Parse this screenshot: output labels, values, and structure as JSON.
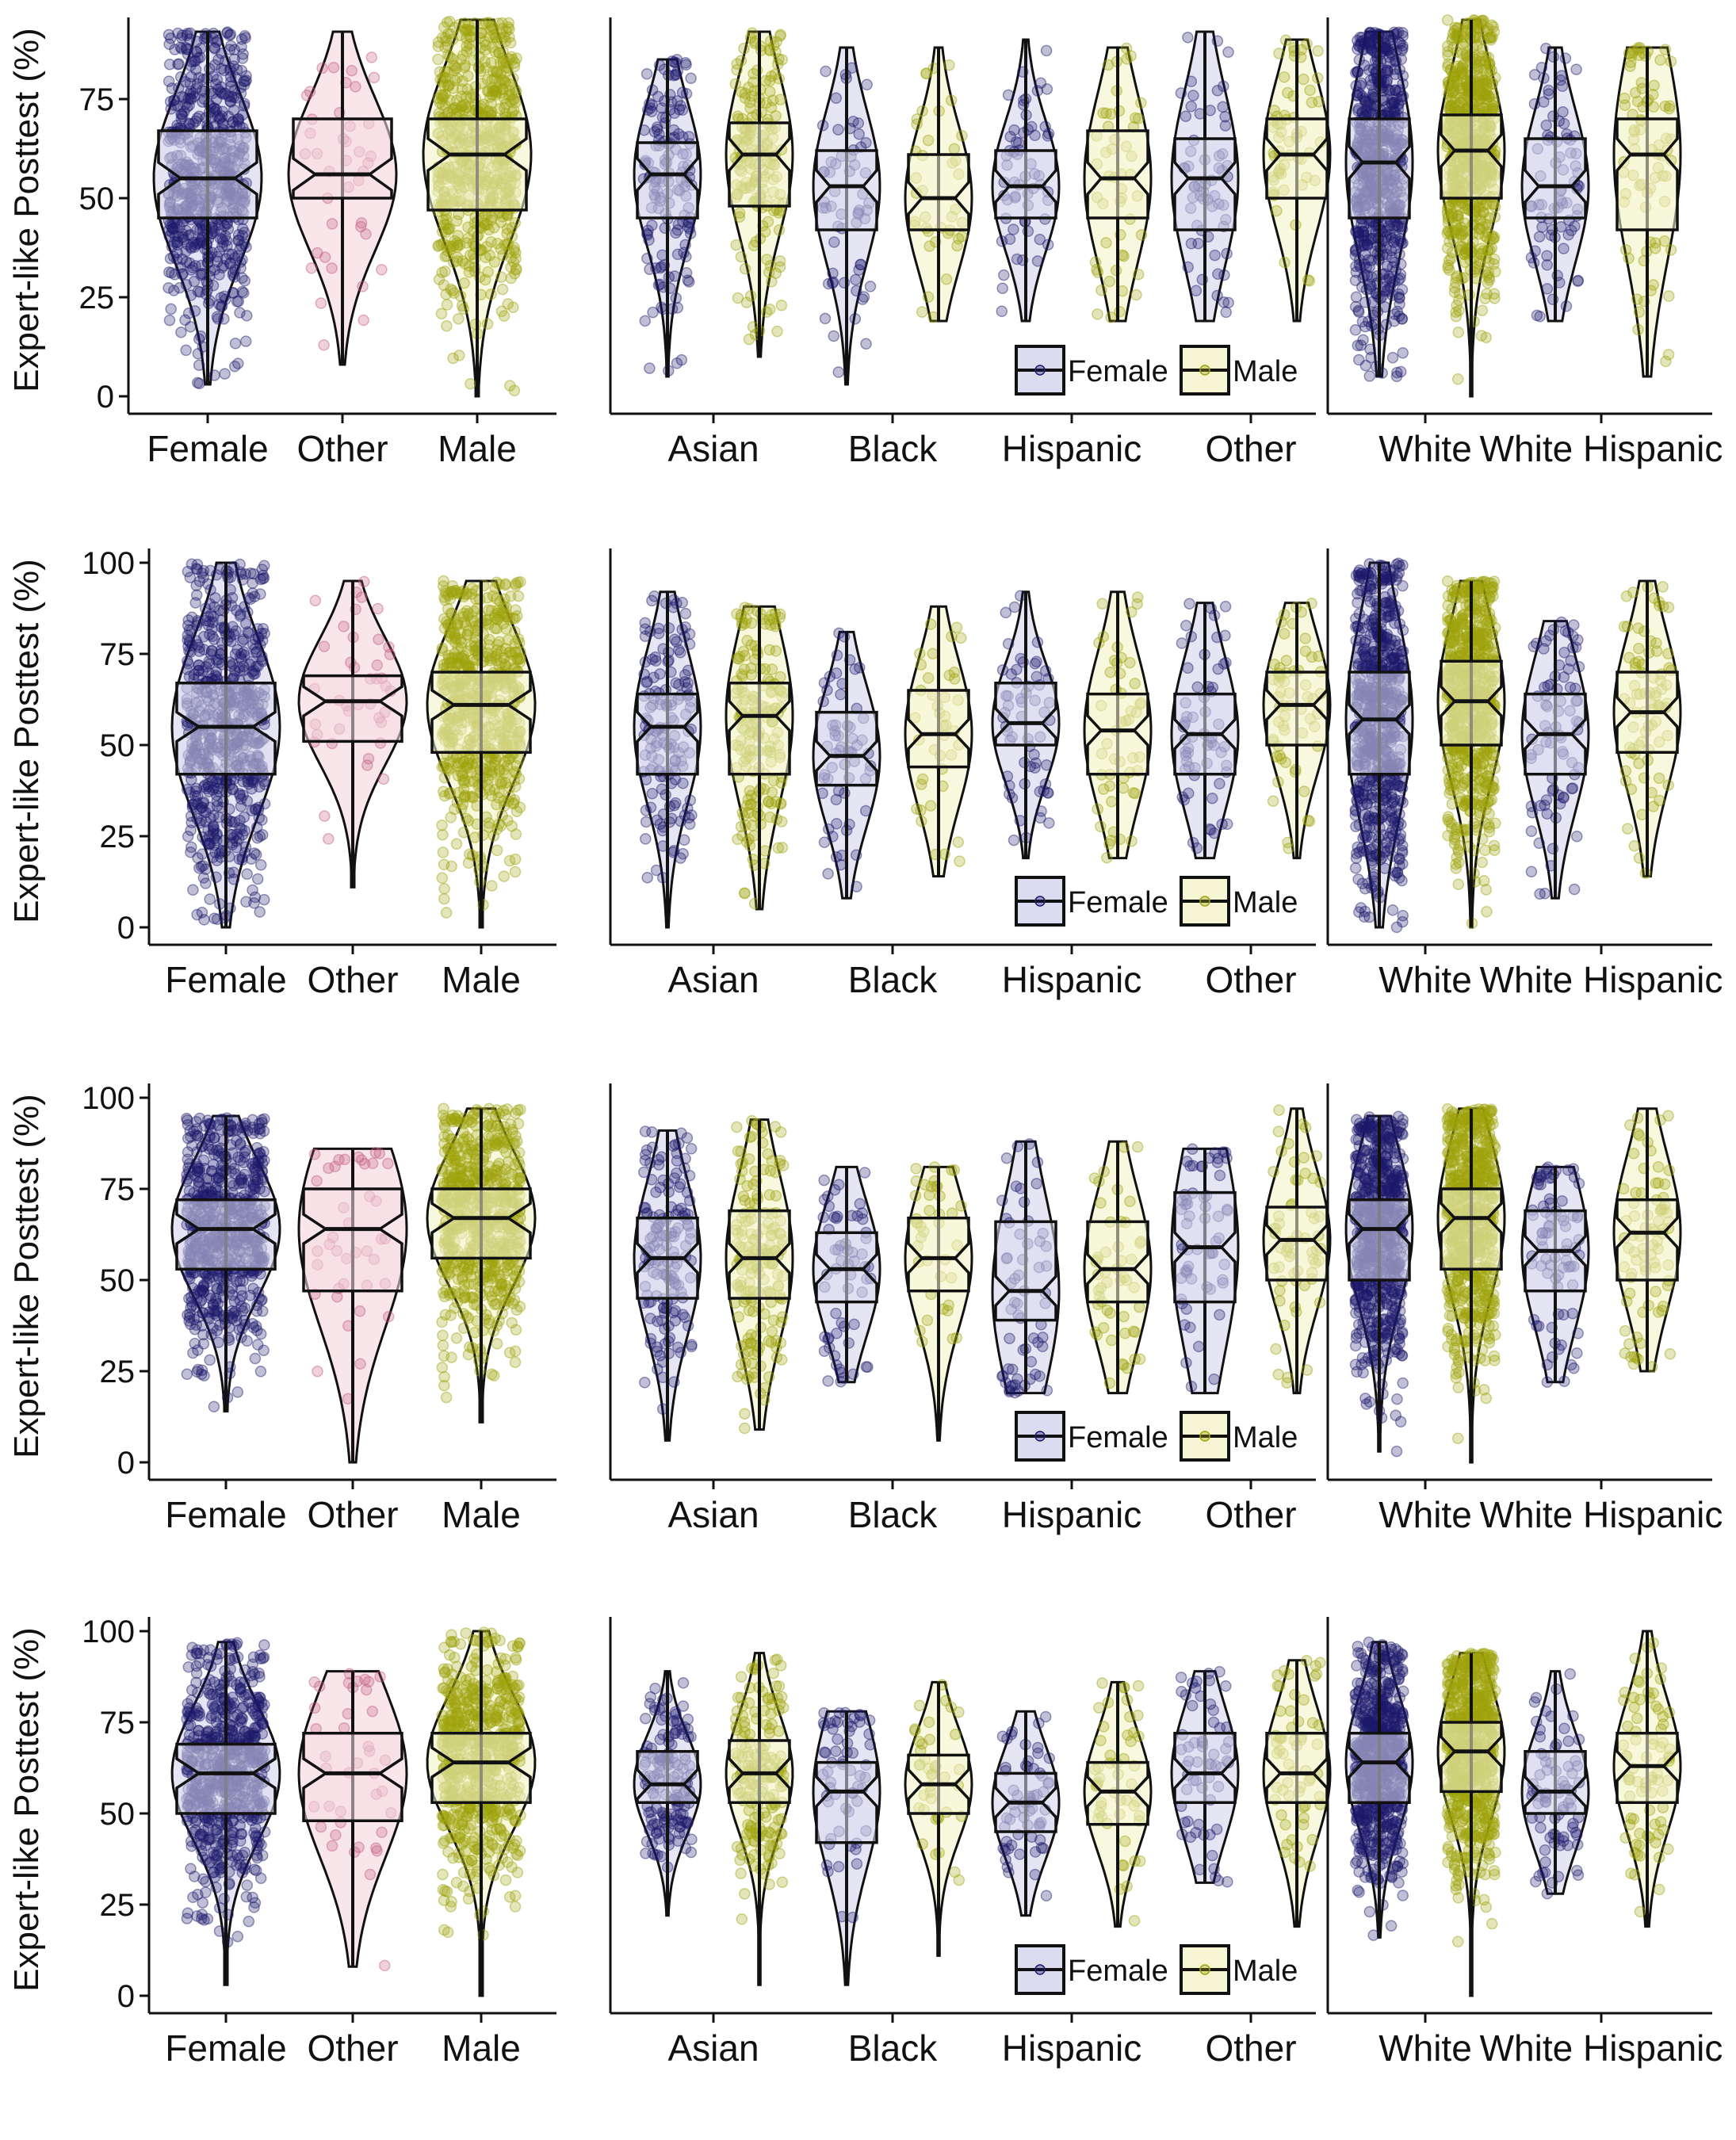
{
  "chart_data": {
    "type": "violin-box",
    "colors": {
      "Female": "#1c1a6b",
      "Other": "#c35a7e",
      "Male": "#9ea30c"
    },
    "fills": {
      "Female": "#dcdcf0",
      "Other": "#f6dde4",
      "Male": "#f6f6d4"
    },
    "legend": {
      "entries": [
        "Female",
        "Male"
      ],
      "placement": "bottom-right of race panel"
    },
    "rows": [
      {
        "ylabel": "Expert-like Posttest (%)",
        "yticks": [
          0,
          25,
          50,
          75
        ],
        "ylim": [
          0,
          92
        ],
        "gender": {
          "categories": [
            "Female",
            "Other",
            "Male"
          ],
          "groups": [
            {
              "cat": "Female",
              "g": "Female",
              "lo": 3,
              "hi": 92,
              "q1": 45,
              "med": 55,
              "q3": 67,
              "n": 1400
            },
            {
              "cat": "Other",
              "g": "Other",
              "lo": 8,
              "hi": 92,
              "q1": 50,
              "med": 56,
              "q3": 70,
              "n": 40
            },
            {
              "cat": "Male",
              "g": "Male",
              "lo": 0,
              "hi": 95,
              "q1": 47,
              "med": 61,
              "q3": 70,
              "n": 1400
            }
          ]
        },
        "race": {
          "categories": [
            "Asian",
            "Black",
            "Hispanic",
            "Other"
          ],
          "groups": [
            {
              "cat": "Asian",
              "g": "Female",
              "lo": 5,
              "hi": 85,
              "q1": 45,
              "med": 56,
              "q3": 64,
              "n": 150
            },
            {
              "cat": "Asian",
              "g": "Male",
              "lo": 10,
              "hi": 92,
              "q1": 48,
              "med": 61,
              "q3": 69,
              "n": 180
            },
            {
              "cat": "Black",
              "g": "Female",
              "lo": 3,
              "hi": 88,
              "q1": 42,
              "med": 53,
              "q3": 62,
              "n": 60
            },
            {
              "cat": "Black",
              "g": "Male",
              "lo": 19,
              "hi": 88,
              "q1": 42,
              "med": 50,
              "q3": 61,
              "n": 40
            },
            {
              "cat": "Hispanic",
              "g": "Female",
              "lo": 19,
              "hi": 90,
              "q1": 45,
              "med": 53,
              "q3": 62,
              "n": 60
            },
            {
              "cat": "Hispanic",
              "g": "Male",
              "lo": 19,
              "hi": 88,
              "q1": 45,
              "med": 55,
              "q3": 67,
              "n": 50
            },
            {
              "cat": "Other",
              "g": "Female",
              "lo": 19,
              "hi": 92,
              "q1": 42,
              "med": 55,
              "q3": 65,
              "n": 60
            },
            {
              "cat": "Other",
              "g": "Male",
              "lo": 19,
              "hi": 90,
              "q1": 50,
              "med": 61,
              "q3": 70,
              "n": 60
            }
          ]
        },
        "race2": {
          "categories": [
            "White",
            "White Hispanic"
          ],
          "groups": [
            {
              "cat": "White",
              "g": "Female",
              "lo": 5,
              "hi": 92,
              "q1": 45,
              "med": 59,
              "q3": 70,
              "n": 700
            },
            {
              "cat": "White",
              "g": "Male",
              "lo": 0,
              "hi": 95,
              "q1": 50,
              "med": 62,
              "q3": 71,
              "n": 700
            },
            {
              "cat": "White Hispanic",
              "g": "Female",
              "lo": 19,
              "hi": 88,
              "q1": 45,
              "med": 53,
              "q3": 65,
              "n": 80
            },
            {
              "cat": "White Hispanic",
              "g": "Male",
              "lo": 5,
              "hi": 88,
              "q1": 42,
              "med": 61,
              "q3": 70,
              "n": 80
            }
          ]
        }
      },
      {
        "ylabel": "Expert-like Posttest (%)",
        "yticks": [
          0,
          25,
          50,
          75,
          100
        ],
        "ylim": [
          0,
          100
        ],
        "gender": {
          "categories": [
            "Female",
            "Other",
            "Male"
          ],
          "groups": [
            {
              "cat": "Female",
              "g": "Female",
              "lo": 0,
              "hi": 100,
              "q1": 42,
              "med": 55,
              "q3": 67,
              "n": 1400
            },
            {
              "cat": "Other",
              "g": "Other",
              "lo": 11,
              "hi": 95,
              "q1": 51,
              "med": 62,
              "q3": 69,
              "n": 40
            },
            {
              "cat": "Male",
              "g": "Male",
              "lo": 0,
              "hi": 95,
              "q1": 48,
              "med": 61,
              "q3": 70,
              "n": 1400
            }
          ]
        },
        "race": {
          "categories": [
            "Asian",
            "Black",
            "Hispanic",
            "Other"
          ],
          "groups": [
            {
              "cat": "Asian",
              "g": "Female",
              "lo": 0,
              "hi": 92,
              "q1": 42,
              "med": 55,
              "q3": 64,
              "n": 150
            },
            {
              "cat": "Asian",
              "g": "Male",
              "lo": 5,
              "hi": 88,
              "q1": 42,
              "med": 58,
              "q3": 67,
              "n": 180
            },
            {
              "cat": "Black",
              "g": "Female",
              "lo": 8,
              "hi": 81,
              "q1": 39,
              "med": 47,
              "q3": 59,
              "n": 60
            },
            {
              "cat": "Black",
              "g": "Male",
              "lo": 14,
              "hi": 88,
              "q1": 44,
              "med": 53,
              "q3": 65,
              "n": 40
            },
            {
              "cat": "Hispanic",
              "g": "Female",
              "lo": 19,
              "hi": 92,
              "q1": 50,
              "med": 56,
              "q3": 67,
              "n": 60
            },
            {
              "cat": "Hispanic",
              "g": "Male",
              "lo": 19,
              "hi": 92,
              "q1": 42,
              "med": 54,
              "q3": 64,
              "n": 50
            },
            {
              "cat": "Other",
              "g": "Female",
              "lo": 19,
              "hi": 89,
              "q1": 42,
              "med": 53,
              "q3": 64,
              "n": 60
            },
            {
              "cat": "Other",
              "g": "Male",
              "lo": 19,
              "hi": 89,
              "q1": 50,
              "med": 61,
              "q3": 70,
              "n": 60
            }
          ]
        },
        "race2": {
          "categories": [
            "White",
            "White Hispanic"
          ],
          "groups": [
            {
              "cat": "White",
              "g": "Female",
              "lo": 0,
              "hi": 100,
              "q1": 42,
              "med": 57,
              "q3": 70,
              "n": 700
            },
            {
              "cat": "White",
              "g": "Male",
              "lo": 0,
              "hi": 95,
              "q1": 50,
              "med": 62,
              "q3": 73,
              "n": 700
            },
            {
              "cat": "White Hispanic",
              "g": "Female",
              "lo": 8,
              "hi": 84,
              "q1": 42,
              "med": 53,
              "q3": 64,
              "n": 80
            },
            {
              "cat": "White Hispanic",
              "g": "Male",
              "lo": 14,
              "hi": 95,
              "q1": 48,
              "med": 59,
              "q3": 70,
              "n": 80
            }
          ]
        }
      },
      {
        "ylabel": "Expert-like Posttest (%)",
        "yticks": [
          0,
          25,
          50,
          75,
          100
        ],
        "ylim": [
          0,
          100
        ],
        "gender": {
          "categories": [
            "Female",
            "Other",
            "Male"
          ],
          "groups": [
            {
              "cat": "Female",
              "g": "Female",
              "lo": 14,
              "hi": 95,
              "q1": 53,
              "med": 64,
              "q3": 72,
              "n": 1400
            },
            {
              "cat": "Other",
              "g": "Other",
              "lo": 0,
              "hi": 86,
              "q1": 47,
              "med": 64,
              "q3": 75,
              "n": 40
            },
            {
              "cat": "Male",
              "g": "Male",
              "lo": 11,
              "hi": 97,
              "q1": 56,
              "med": 67,
              "q3": 75,
              "n": 1400
            }
          ]
        },
        "race": {
          "categories": [
            "Asian",
            "Black",
            "Hispanic",
            "Other"
          ],
          "groups": [
            {
              "cat": "Asian",
              "g": "Female",
              "lo": 6,
              "hi": 91,
              "q1": 45,
              "med": 56,
              "q3": 67,
              "n": 150
            },
            {
              "cat": "Asian",
              "g": "Male",
              "lo": 9,
              "hi": 94,
              "q1": 45,
              "med": 56,
              "q3": 69,
              "n": 180
            },
            {
              "cat": "Black",
              "g": "Female",
              "lo": 22,
              "hi": 81,
              "q1": 44,
              "med": 53,
              "q3": 63,
              "n": 60
            },
            {
              "cat": "Black",
              "g": "Male",
              "lo": 6,
              "hi": 81,
              "q1": 47,
              "med": 56,
              "q3": 67,
              "n": 40
            },
            {
              "cat": "Hispanic",
              "g": "Female",
              "lo": 19,
              "hi": 88,
              "q1": 39,
              "med": 47,
              "q3": 66,
              "n": 60
            },
            {
              "cat": "Hispanic",
              "g": "Male",
              "lo": 19,
              "hi": 88,
              "q1": 44,
              "med": 53,
              "q3": 66,
              "n": 50
            },
            {
              "cat": "Other",
              "g": "Female",
              "lo": 19,
              "hi": 86,
              "q1": 44,
              "med": 59,
              "q3": 74,
              "n": 60
            },
            {
              "cat": "Other",
              "g": "Male",
              "lo": 19,
              "hi": 97,
              "q1": 50,
              "med": 61,
              "q3": 70,
              "n": 60
            }
          ]
        },
        "race2": {
          "categories": [
            "White",
            "White Hispanic"
          ],
          "groups": [
            {
              "cat": "White",
              "g": "Female",
              "lo": 3,
              "hi": 95,
              "q1": 50,
              "med": 64,
              "q3": 72,
              "n": 700
            },
            {
              "cat": "White",
              "g": "Male",
              "lo": 0,
              "hi": 97,
              "q1": 53,
              "med": 67,
              "q3": 75,
              "n": 700
            },
            {
              "cat": "White Hispanic",
              "g": "Female",
              "lo": 22,
              "hi": 81,
              "q1": 47,
              "med": 58,
              "q3": 69,
              "n": 80
            },
            {
              "cat": "White Hispanic",
              "g": "Male",
              "lo": 25,
              "hi": 97,
              "q1": 50,
              "med": 63,
              "q3": 72,
              "n": 80
            }
          ]
        }
      },
      {
        "ylabel": "Expert-like Posttest (%)",
        "yticks": [
          0,
          25,
          50,
          75,
          100
        ],
        "ylim": [
          0,
          100
        ],
        "gender": {
          "categories": [
            "Female",
            "Other",
            "Male"
          ],
          "groups": [
            {
              "cat": "Female",
              "g": "Female",
              "lo": 3,
              "hi": 97,
              "q1": 50,
              "med": 61,
              "q3": 69,
              "n": 1400
            },
            {
              "cat": "Other",
              "g": "Other",
              "lo": 8,
              "hi": 89,
              "q1": 48,
              "med": 61,
              "q3": 72,
              "n": 40
            },
            {
              "cat": "Male",
              "g": "Male",
              "lo": 0,
              "hi": 100,
              "q1": 53,
              "med": 64,
              "q3": 72,
              "n": 1400
            }
          ]
        },
        "race": {
          "categories": [
            "Asian",
            "Black",
            "Hispanic",
            "Other"
          ],
          "groups": [
            {
              "cat": "Asian",
              "g": "Female",
              "lo": 22,
              "hi": 89,
              "q1": 53,
              "med": 58,
              "q3": 67,
              "n": 150
            },
            {
              "cat": "Asian",
              "g": "Male",
              "lo": 3,
              "hi": 94,
              "q1": 53,
              "med": 61,
              "q3": 70,
              "n": 180
            },
            {
              "cat": "Black",
              "g": "Female",
              "lo": 3,
              "hi": 78,
              "q1": 42,
              "med": 56,
              "q3": 64,
              "n": 60
            },
            {
              "cat": "Black",
              "g": "Male",
              "lo": 11,
              "hi": 86,
              "q1": 50,
              "med": 58,
              "q3": 66,
              "n": 40
            },
            {
              "cat": "Hispanic",
              "g": "Female",
              "lo": 22,
              "hi": 78,
              "q1": 45,
              "med": 53,
              "q3": 61,
              "n": 60
            },
            {
              "cat": "Hispanic",
              "g": "Male",
              "lo": 19,
              "hi": 86,
              "q1": 47,
              "med": 56,
              "q3": 64,
              "n": 50
            },
            {
              "cat": "Other",
              "g": "Female",
              "lo": 31,
              "hi": 89,
              "q1": 53,
              "med": 61,
              "q3": 72,
              "n": 60
            },
            {
              "cat": "Other",
              "g": "Male",
              "lo": 19,
              "hi": 92,
              "q1": 53,
              "med": 61,
              "q3": 72,
              "n": 60
            }
          ]
        },
        "race2": {
          "categories": [
            "White",
            "White Hispanic"
          ],
          "groups": [
            {
              "cat": "White",
              "g": "Female",
              "lo": 16,
              "hi": 97,
              "q1": 53,
              "med": 64,
              "q3": 72,
              "n": 700
            },
            {
              "cat": "White",
              "g": "Male",
              "lo": 0,
              "hi": 94,
              "q1": 56,
              "med": 67,
              "q3": 75,
              "n": 700
            },
            {
              "cat": "White Hispanic",
              "g": "Female",
              "lo": 28,
              "hi": 89,
              "q1": 50,
              "med": 56,
              "q3": 67,
              "n": 80
            },
            {
              "cat": "White Hispanic",
              "g": "Male",
              "lo": 19,
              "hi": 100,
              "q1": 53,
              "med": 63,
              "q3": 72,
              "n": 80
            }
          ]
        }
      }
    ]
  }
}
